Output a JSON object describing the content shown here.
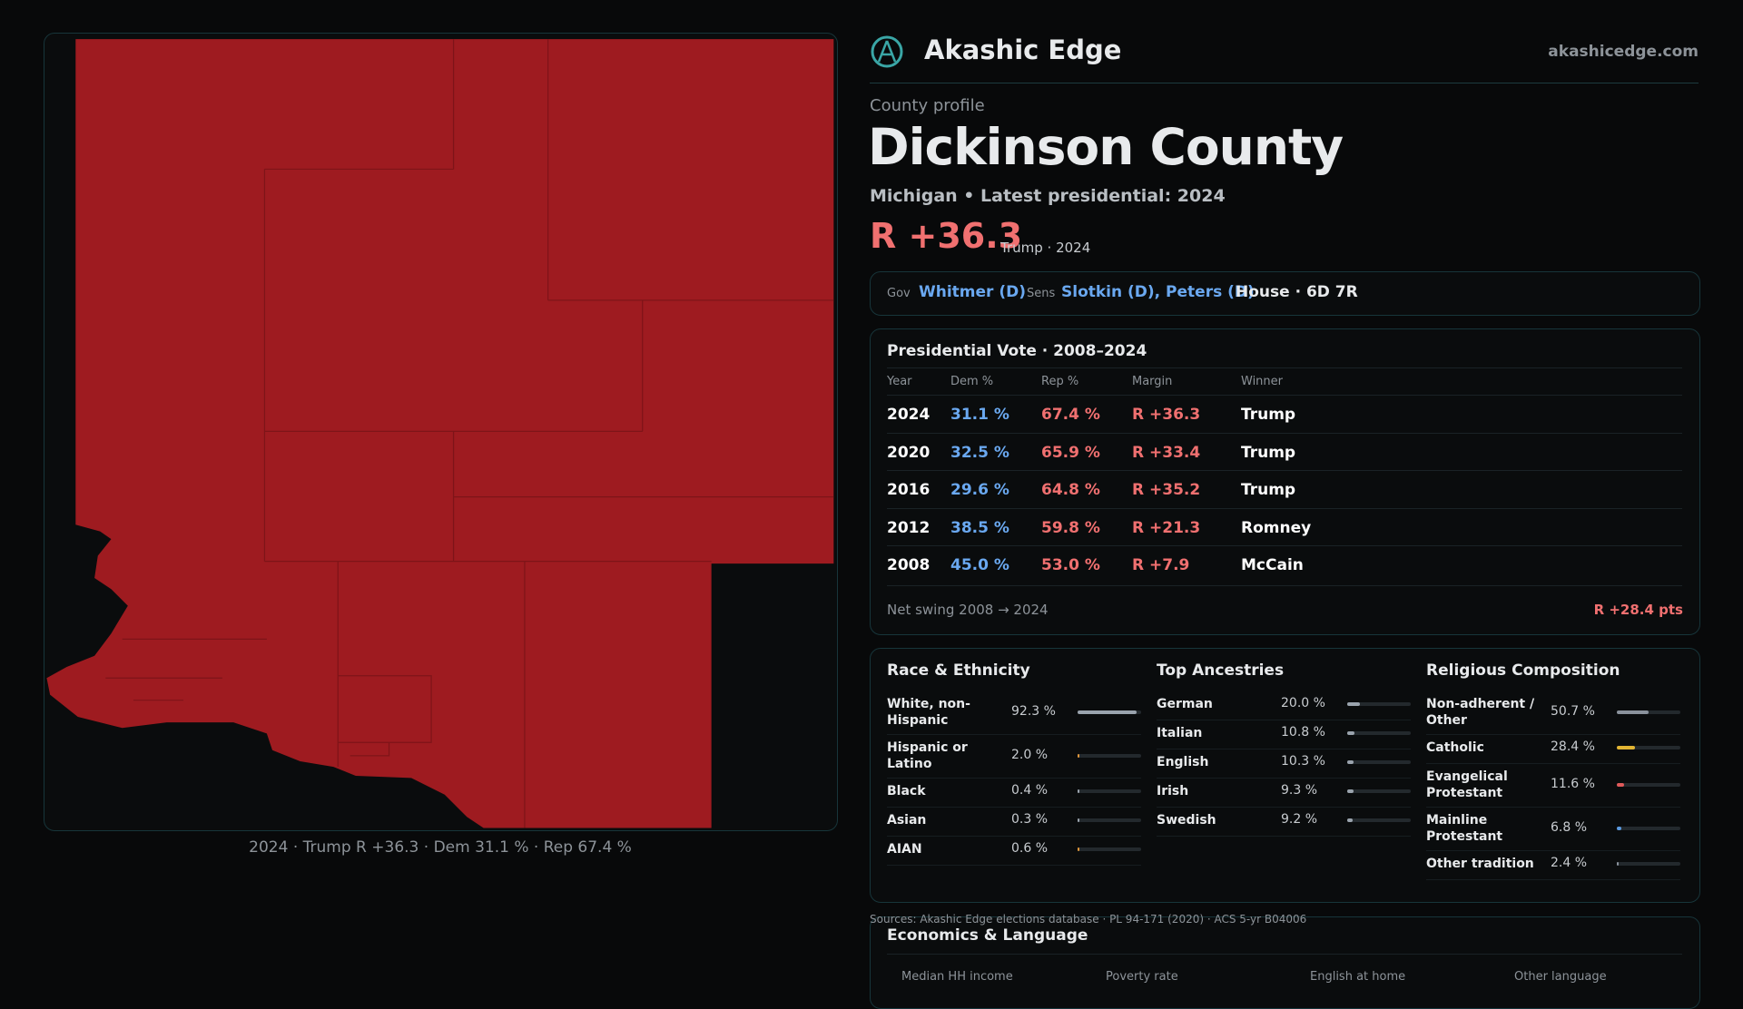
{
  "brand": {
    "name": "Akashic Edge",
    "url": "akashicedge.com"
  },
  "map": {
    "caption": "2024 · Trump R +36.3 · Dem 31.1 % · Rep 67.4 %"
  },
  "profile": {
    "kicker": "County profile",
    "title": "Dickinson County",
    "subtitle": "Michigan • Latest presidential: 2024",
    "margin": "R +36.3",
    "margin_note": "Trump · 2024"
  },
  "officials": {
    "gov_label": "Gov",
    "gov": "Whitmer (D)",
    "sens_label": "Sens",
    "sens": "Slotkin (D), Peters (D)",
    "house": "House · 6D 7R"
  },
  "presidential": {
    "title": "Presidential Vote · 2008–2024",
    "columns": [
      "Year",
      "Dem %",
      "Rep %",
      "Margin",
      "Winner"
    ],
    "rows": [
      [
        "2024",
        "31.1 %",
        "67.4 %",
        "R +36.3",
        "Trump"
      ],
      [
        "2020",
        "32.5 %",
        "65.9 %",
        "R +33.4",
        "Trump"
      ],
      [
        "2016",
        "29.6 %",
        "64.8 %",
        "R +35.2",
        "Trump"
      ],
      [
        "2012",
        "38.5 %",
        "59.8 %",
        "R +21.3",
        "Romney"
      ],
      [
        "2008",
        "45.0 %",
        "53.0 %",
        "R +7.9",
        "McCain"
      ]
    ],
    "swing_label": "Net swing 2008 → 2024",
    "swing": "R +28.4 pts"
  },
  "demographics": [
    {
      "title": "Race & Ethnicity",
      "xlim": [
        0,
        100
      ],
      "rows": [
        {
          "name": "White, non-Hispanic",
          "value": 92.3,
          "label": "92.3 %",
          "color": "#9aa3ad"
        },
        {
          "name": "Hispanic or Latino",
          "value": 2.0,
          "label": "2.0 %",
          "color": "#e0973a"
        },
        {
          "name": "Black",
          "value": 0.4,
          "label": "0.4 %",
          "color": "#9aa3ad"
        },
        {
          "name": "Asian",
          "value": 0.3,
          "label": "0.3 %",
          "color": "#9aa3ad"
        },
        {
          "name": "AIAN",
          "value": 0.6,
          "label": "0.6 %",
          "color": "#e0973a"
        }
      ]
    },
    {
      "title": "Top Ancestries",
      "xlim": [
        0,
        100
      ],
      "rows": [
        {
          "name": "German",
          "value": 20.0,
          "label": "20.0 %",
          "color": "#9aa3ad"
        },
        {
          "name": "Italian",
          "value": 10.8,
          "label": "10.8 %",
          "color": "#9aa3ad"
        },
        {
          "name": "English",
          "value": 10.3,
          "label": "10.3 %",
          "color": "#9aa3ad"
        },
        {
          "name": "Irish",
          "value": 9.3,
          "label": "9.3 %",
          "color": "#9aa3ad"
        },
        {
          "name": "Swedish",
          "value": 9.2,
          "label": "9.2 %",
          "color": "#9aa3ad"
        }
      ]
    },
    {
      "title": "Religious Composition",
      "xlim": [
        0,
        100
      ],
      "rows": [
        {
          "name": "Non-adherent / Other",
          "value": 50.7,
          "label": "50.7 %",
          "color": "#8a929c"
        },
        {
          "name": "Catholic",
          "value": 28.4,
          "label": "28.4 %",
          "color": "#e3b533"
        },
        {
          "name": "Evangelical Protestant",
          "value": 11.6,
          "label": "11.6 %",
          "color": "#e05a5a"
        },
        {
          "name": "Mainline Protestant",
          "value": 6.8,
          "label": "6.8 %",
          "color": "#5a9ae0"
        },
        {
          "name": "Other tradition",
          "value": 2.4,
          "label": "2.4 %",
          "color": "#8a929c"
        }
      ]
    }
  ],
  "sources": "Sources: Akashic Edge elections database · PL 94-171 (2020) · ACS 5-yr B04006",
  "economics": {
    "title": "Economics & Language",
    "columns": [
      "Median HH income",
      "Poverty rate",
      "English at home",
      "Other language"
    ]
  }
}
